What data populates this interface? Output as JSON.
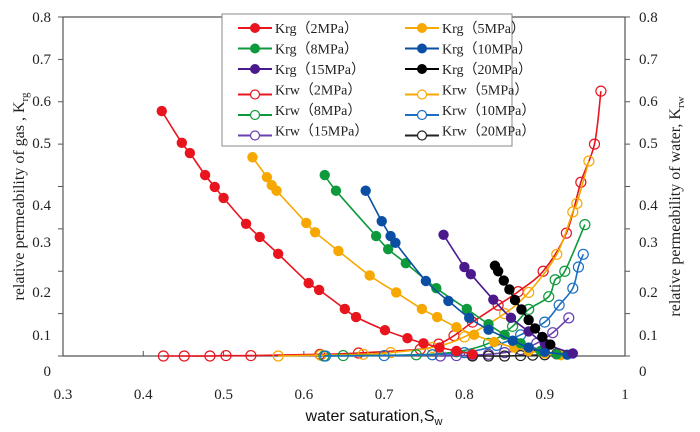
{
  "chart_data": {
    "type": "line",
    "title": "",
    "xlabel": "water saturation,S",
    "xlabel_sub": "w",
    "ylabel_left": "relative permeability of gas , K",
    "ylabel_left_sub": "rg",
    "ylabel_right": "relative permeability of water, K",
    "ylabel_right_sub": "rw",
    "xlim": [
      0.3,
      1.0
    ],
    "ylim": [
      0,
      0.8
    ],
    "x_ticks": [
      "0.3",
      "0.4",
      "0.5",
      "0.6",
      "0.7",
      "0.8",
      "0.9",
      "1"
    ],
    "y_ticks_left": [
      "0",
      "0.1",
      "0.2",
      "0.3",
      "0.4",
      "0.5",
      "0.6",
      "0.7",
      "0.8"
    ],
    "y_ticks_right": [
      "0",
      "0.1",
      "0.2",
      "0.3",
      "0.4",
      "0.5",
      "0.6",
      "0.7",
      "0.8"
    ],
    "grid": false,
    "legend_position": "top-center",
    "legend_columns": 2,
    "series": [
      {
        "name": "Krg（2MPa）",
        "color": "#e8141e",
        "marker": "filled",
        "x": [
          0.423,
          0.448,
          0.458,
          0.477,
          0.489,
          0.5,
          0.528,
          0.545,
          0.568,
          0.606,
          0.619,
          0.651,
          0.665,
          0.701,
          0.729,
          0.749,
          0.769,
          0.79,
          0.81
        ],
        "y": [
          0.578,
          0.503,
          0.479,
          0.427,
          0.399,
          0.373,
          0.312,
          0.281,
          0.241,
          0.172,
          0.156,
          0.111,
          0.092,
          0.061,
          0.042,
          0.03,
          0.02,
          0.012,
          0.004
        ]
      },
      {
        "name": "Krg（5MPa）",
        "color": "#f7a800",
        "marker": "filled",
        "x": [
          0.536,
          0.554,
          0.56,
          0.566,
          0.603,
          0.614,
          0.643,
          0.682,
          0.715,
          0.747,
          0.766,
          0.79,
          0.812,
          0.837,
          0.862,
          0.88,
          0.9,
          0.92
        ],
        "y": [
          0.469,
          0.422,
          0.403,
          0.39,
          0.314,
          0.292,
          0.248,
          0.19,
          0.15,
          0.111,
          0.092,
          0.068,
          0.05,
          0.033,
          0.02,
          0.012,
          0.006,
          0.002
        ]
      },
      {
        "name": "Krg（8MPa）",
        "color": "#0e9a3c",
        "marker": "filled",
        "x": [
          0.626,
          0.64,
          0.69,
          0.705,
          0.727,
          0.765,
          0.803,
          0.83,
          0.85,
          0.87,
          0.895,
          0.915
        ],
        "y": [
          0.427,
          0.39,
          0.283,
          0.252,
          0.219,
          0.16,
          0.111,
          0.075,
          0.05,
          0.03,
          0.012,
          0.004
        ]
      },
      {
        "name": "Krg（10MPa）",
        "color": "#0a4fa3",
        "marker": "filled",
        "x": [
          0.677,
          0.697,
          0.708,
          0.714,
          0.752,
          0.78,
          0.806,
          0.83,
          0.86,
          0.88,
          0.9,
          0.928
        ],
        "y": [
          0.39,
          0.318,
          0.283,
          0.267,
          0.177,
          0.13,
          0.09,
          0.062,
          0.036,
          0.02,
          0.01,
          0.003
        ]
      },
      {
        "name": "Krg（15MPa）",
        "color": "#4a1a8c",
        "marker": "filled",
        "x": [
          0.774,
          0.8,
          0.808,
          0.836,
          0.858,
          0.88,
          0.9,
          0.935
        ],
        "y": [
          0.286,
          0.21,
          0.193,
          0.133,
          0.09,
          0.058,
          0.03,
          0.006
        ]
      },
      {
        "name": "Krg（20MPa）",
        "color": "#000000",
        "marker": "filled",
        "x": [
          0.838,
          0.842,
          0.849,
          0.856,
          0.863,
          0.871,
          0.88,
          0.888,
          0.897,
          0.907
        ],
        "y": [
          0.213,
          0.2,
          0.178,
          0.157,
          0.132,
          0.11,
          0.085,
          0.065,
          0.045,
          0.027
        ]
      },
      {
        "name": "Krw（2MPa）",
        "color": "#e8141e",
        "marker": "open",
        "x": [
          0.425,
          0.451,
          0.483,
          0.503,
          0.534,
          0.62,
          0.668,
          0.745,
          0.768,
          0.787,
          0.81,
          0.842,
          0.867,
          0.898,
          0.927,
          0.945,
          0.962,
          0.97
        ],
        "y": [
          0.0,
          0.0,
          0.0,
          0.001,
          0.001,
          0.004,
          0.007,
          0.016,
          0.028,
          0.048,
          0.08,
          0.12,
          0.152,
          0.2,
          0.29,
          0.41,
          0.5,
          0.625
        ]
      },
      {
        "name": "Krw（5MPa）",
        "color": "#f7a800",
        "marker": "open",
        "x": [
          0.568,
          0.621,
          0.674,
          0.708,
          0.76,
          0.8,
          0.85,
          0.88,
          0.915,
          0.935,
          0.94,
          0.955
        ],
        "y": [
          0.0,
          0.002,
          0.004,
          0.008,
          0.02,
          0.045,
          0.1,
          0.15,
          0.24,
          0.34,
          0.36,
          0.46
        ]
      },
      {
        "name": "Krw（8MPa）",
        "color": "#0e9a3c",
        "marker": "open",
        "x": [
          0.625,
          0.649,
          0.74,
          0.79,
          0.83,
          0.86,
          0.88,
          0.905,
          0.913,
          0.925,
          0.95
        ],
        "y": [
          0.0,
          0.001,
          0.003,
          0.01,
          0.03,
          0.07,
          0.11,
          0.14,
          0.18,
          0.2,
          0.31
        ]
      },
      {
        "name": "Krw（10MPa）",
        "color": "#1a6fc4",
        "marker": "open",
        "x": [
          0.627,
          0.7,
          0.76,
          0.8,
          0.84,
          0.87,
          0.9,
          0.918,
          0.935,
          0.942,
          0.948
        ],
        "y": [
          0.0,
          0.001,
          0.003,
          0.008,
          0.025,
          0.05,
          0.08,
          0.12,
          0.16,
          0.21,
          0.24
        ]
      },
      {
        "name": "Krw（15MPa）",
        "color": "#6a3fb0",
        "marker": "open",
        "x": [
          0.77,
          0.79,
          0.81,
          0.83,
          0.85,
          0.87,
          0.89,
          0.91,
          0.93
        ],
        "y": [
          0.0,
          0.001,
          0.002,
          0.004,
          0.008,
          0.015,
          0.03,
          0.055,
          0.09
        ]
      },
      {
        "name": "Krw（20MPa）",
        "color": "#222222",
        "marker": "open",
        "x": [
          0.81,
          0.83,
          0.85,
          0.87,
          0.885,
          0.9,
          0.915
        ],
        "y": [
          0.0,
          0.0,
          0.0,
          0.001,
          0.002,
          0.003,
          0.005
        ]
      }
    ]
  }
}
